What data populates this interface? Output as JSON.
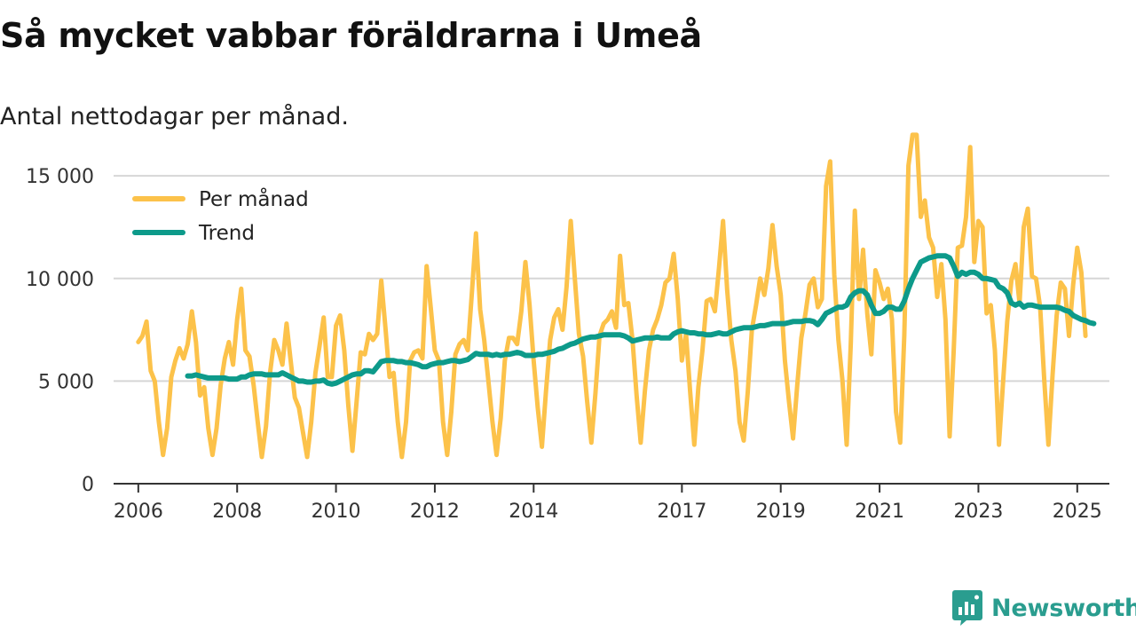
{
  "page": {
    "title": "Så mycket vabbar föräldrarna i Umeå",
    "subtitle": "Antal nettodagar per månad."
  },
  "brand": {
    "name": "Newsworthy",
    "icon": "newsworthy-logo-icon",
    "color": "#2a9d8f"
  },
  "chart_data": {
    "type": "line",
    "title": "Så mycket vabbar föräldrarna i Umeå",
    "subtitle": "Antal nettodagar per månad.",
    "xlabel": "",
    "ylabel": "",
    "x_start": 2006,
    "x_step": 0.08333333333333333,
    "xlim": [
      2005.5,
      2025.65
    ],
    "ylim": [
      0,
      16000
    ],
    "y_ticks": [
      0,
      5000,
      10000,
      15000
    ],
    "y_tick_labels": [
      "0",
      "5 000",
      "10 000",
      "15 000"
    ],
    "x_ticks": [
      2006,
      2008,
      2010,
      2012,
      2014,
      2017,
      2019,
      2021,
      2023,
      2025
    ],
    "x_tick_labels": [
      "2006",
      "2008",
      "2010",
      "2012",
      "2014",
      "2017",
      "2019",
      "2021",
      "2023",
      "2025"
    ],
    "grid": true,
    "legend_position": "top-left",
    "series": [
      {
        "name": "Per månad",
        "color": "#fcc24a",
        "start_index": 0,
        "values": [
          6900,
          7200,
          7900,
          5500,
          5000,
          3000,
          1400,
          2700,
          5200,
          6000,
          6600,
          6100,
          6800,
          8400,
          6900,
          4300,
          4700,
          2700,
          1400,
          2700,
          4800,
          6100,
          6900,
          5800,
          8000,
          9500,
          6500,
          6200,
          4800,
          3000,
          1300,
          2800,
          5400,
          7000,
          6500,
          5800,
          7800,
          6000,
          4200,
          3700,
          2500,
          1300,
          3000,
          5400,
          6700,
          8100,
          5200,
          5200,
          7700,
          8200,
          6500,
          3800,
          1600,
          4000,
          6400,
          6300,
          7300,
          7000,
          7300,
          9900,
          7600,
          5200,
          5400,
          3000,
          1300,
          3000,
          6000,
          6400,
          6500,
          6100,
          10600,
          8600,
          6500,
          6000,
          3000,
          1400,
          3500,
          6300,
          6800,
          7000,
          6500,
          9300,
          12200,
          8500,
          7000,
          5000,
          3000,
          1400,
          3200,
          6000,
          7100,
          7100,
          6800,
          8400,
          10800,
          8700,
          6000,
          3700,
          1800,
          4500,
          7000,
          8100,
          8500,
          7500,
          9600,
          12800,
          10000,
          7300,
          6200,
          4000,
          2000,
          4400,
          7200,
          7800,
          8000,
          8400,
          7600,
          11100,
          8700,
          8800,
          7000,
          4300,
          2000,
          4500,
          6500,
          7500,
          8000,
          8700,
          9800,
          10000,
          11200,
          9000,
          6000,
          7300,
          4500,
          1900,
          4700,
          6500,
          8900,
          9000,
          8400,
          10500,
          12800,
          9400,
          7000,
          5500,
          3000,
          2100,
          4500,
          7500,
          8700,
          10000,
          9200,
          10500,
          12600,
          10600,
          9200,
          6000,
          4000,
          2200,
          4800,
          7100,
          8300,
          9700,
          10000,
          8600,
          9000,
          14500,
          15700,
          10200,
          7000,
          5000,
          1900,
          6800,
          13300,
          9000,
          11400,
          8300,
          6300,
          10400,
          9800,
          9000,
          9500,
          8000,
          3500,
          2000,
          7200,
          15500,
          17000,
          17000,
          13000,
          13800,
          12000,
          11500,
          9100,
          10700,
          8000,
          2300,
          6500,
          11500,
          11600,
          13000,
          16400,
          10800,
          12800,
          12500,
          8300,
          8700,
          6500,
          1900,
          5000,
          7900,
          9900,
          10700,
          8800,
          12500,
          13400,
          10100,
          10000,
          8600,
          5000,
          1900,
          5300,
          8200,
          9800,
          9500,
          7200,
          9700,
          11500,
          10300,
          7200
        ]
      },
      {
        "name": "Trend",
        "color": "#0d9a8a",
        "start_index": 12,
        "values": [
          5250,
          5250,
          5300,
          5250,
          5200,
          5150,
          5150,
          5150,
          5150,
          5150,
          5100,
          5100,
          5100,
          5200,
          5200,
          5300,
          5350,
          5350,
          5350,
          5300,
          5300,
          5300,
          5300,
          5400,
          5300,
          5200,
          5100,
          5000,
          5000,
          4950,
          4950,
          5000,
          5000,
          5050,
          4900,
          4850,
          4900,
          5000,
          5100,
          5200,
          5300,
          5350,
          5350,
          5500,
          5500,
          5450,
          5700,
          5950,
          6000,
          6000,
          6000,
          5950,
          5950,
          5900,
          5900,
          5850,
          5800,
          5700,
          5700,
          5800,
          5850,
          5900,
          5900,
          5950,
          6000,
          6000,
          5950,
          6000,
          6050,
          6200,
          6350,
          6300,
          6300,
          6300,
          6250,
          6300,
          6250,
          6300,
          6300,
          6350,
          6400,
          6350,
          6250,
          6250,
          6250,
          6300,
          6300,
          6350,
          6400,
          6450,
          6550,
          6600,
          6700,
          6800,
          6850,
          6950,
          7050,
          7100,
          7150,
          7150,
          7200,
          7250,
          7250,
          7250,
          7250,
          7250,
          7200,
          7100,
          6950,
          7000,
          7050,
          7100,
          7100,
          7100,
          7150,
          7100,
          7100,
          7100,
          7300,
          7400,
          7450,
          7400,
          7350,
          7350,
          7300,
          7300,
          7250,
          7250,
          7300,
          7350,
          7300,
          7300,
          7400,
          7500,
          7550,
          7600,
          7600,
          7600,
          7650,
          7700,
          7700,
          7750,
          7800,
          7800,
          7800,
          7800,
          7850,
          7900,
          7900,
          7900,
          7950,
          7950,
          7900,
          7750,
          8000,
          8300,
          8400,
          8500,
          8600,
          8600,
          8700,
          9100,
          9300,
          9400,
          9400,
          9200,
          8700,
          8300,
          8300,
          8400,
          8600,
          8600,
          8500,
          8500,
          8900,
          9500,
          10000,
          10400,
          10800,
          10900,
          11000,
          11050,
          11100,
          11100,
          11100,
          11000,
          10600,
          10100,
          10300,
          10200,
          10300,
          10300,
          10200,
          10000,
          10000,
          9950,
          9900,
          9600,
          9500,
          9300,
          8800,
          8700,
          8800,
          8600,
          8700,
          8700,
          8650,
          8600,
          8600,
          8600,
          8600,
          8600,
          8550,
          8450,
          8400,
          8200,
          8100,
          8000,
          7950,
          7850,
          7800
        ]
      }
    ]
  }
}
